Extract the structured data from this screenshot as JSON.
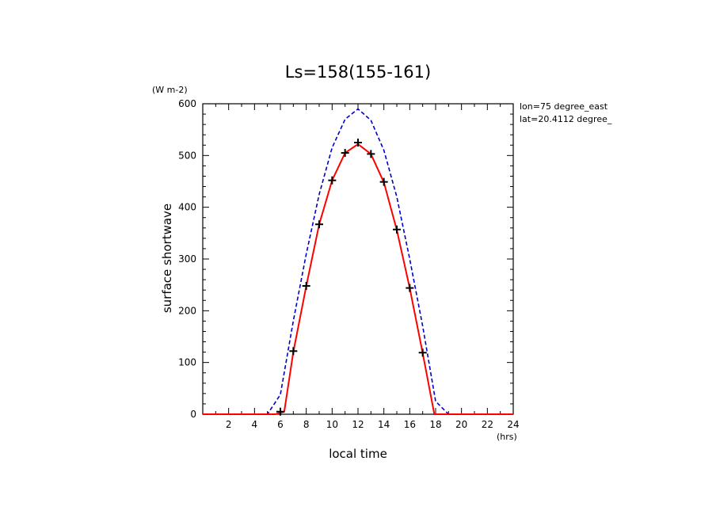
{
  "chart_data": {
    "type": "line",
    "title": "Ls=158(155-161)",
    "ylabel": "surface shortwave",
    "yunit": "(W m-2)",
    "xlabel": "local time",
    "xunit": "(hrs)",
    "annotations": [
      "lon=75 degree_east",
      "lat=20.4112 degree_"
    ],
    "xlim": [
      0,
      24
    ],
    "ylim": [
      0,
      600
    ],
    "x_ticks": [
      2,
      4,
      6,
      8,
      10,
      12,
      14,
      16,
      18,
      20,
      22,
      24
    ],
    "y_ticks": [
      0,
      100,
      200,
      300,
      400,
      500,
      600
    ],
    "grid": false,
    "series": [
      {
        "style": "dashed",
        "color": "#0000cc",
        "x": [
          0,
          1,
          2,
          3,
          4,
          5,
          6,
          7,
          8,
          9,
          10,
          11,
          12,
          13,
          14,
          15,
          16,
          17,
          18,
          19,
          20,
          21,
          22,
          23,
          24
        ],
        "values": [
          0,
          0,
          0,
          0,
          0,
          0,
          38,
          180,
          310,
          425,
          515,
          570,
          590,
          568,
          510,
          420,
          300,
          170,
          25,
          0,
          0,
          0,
          0,
          0,
          0
        ]
      },
      {
        "style": "solid",
        "color": "#ff0000",
        "x": [
          0,
          5.6,
          6.3,
          7,
          8,
          9,
          10,
          11,
          12,
          13,
          14,
          15,
          16,
          17,
          17.9,
          24
        ],
        "values": [
          0,
          0,
          5,
          120,
          248,
          367,
          452,
          505,
          522,
          503,
          448,
          356,
          244,
          118,
          0,
          0
        ]
      },
      {
        "style": "markers",
        "marker": "+",
        "color": "#000000",
        "x": [
          6,
          7,
          8,
          9,
          10,
          11,
          12,
          13,
          14,
          15,
          16,
          17
        ],
        "values": [
          5,
          122,
          248,
          367,
          452,
          505,
          525,
          503,
          449,
          357,
          244,
          119
        ]
      }
    ]
  }
}
